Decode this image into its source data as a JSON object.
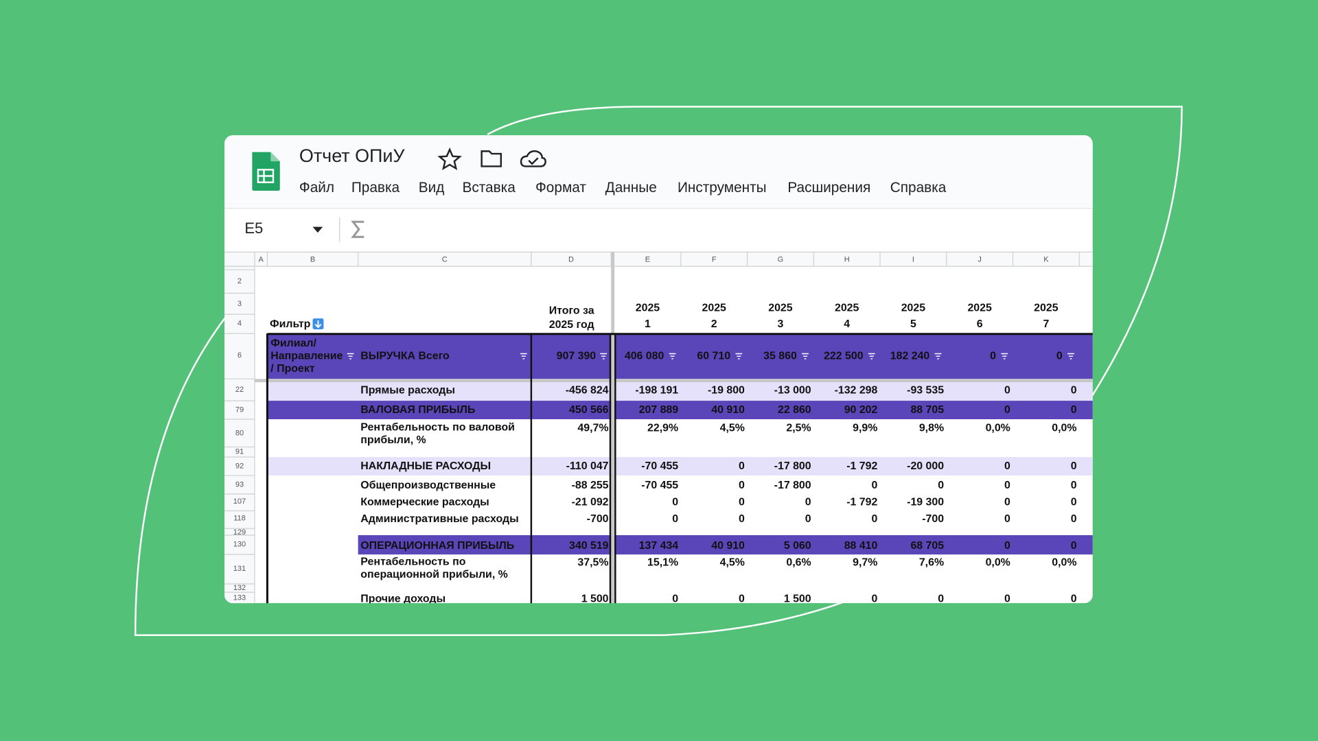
{
  "app": {
    "title": "Отчет ОПиУ",
    "menu": [
      "Файл",
      "Правка",
      "Вид",
      "Вставка",
      "Формат",
      "Данные",
      "Инструменты",
      "Расширения",
      "Справка"
    ]
  },
  "formula_bar": {
    "cell": "E5"
  },
  "sheet": {
    "columns": [
      "A",
      "B",
      "C",
      "D",
      "E",
      "F",
      "G",
      "H",
      "I",
      "J",
      "K"
    ],
    "row_numbers": [
      "2",
      "3",
      "4",
      "6",
      "22",
      "79",
      "80",
      "91",
      "92",
      "93",
      "107",
      "118",
      "129",
      "130",
      "131",
      "132",
      "133"
    ],
    "filter": "Фильтр",
    "total_header": [
      "Итого за",
      "2025 год"
    ],
    "periods": [
      [
        "2025",
        "1"
      ],
      [
        "2025",
        "2"
      ],
      [
        "2025",
        "3"
      ],
      [
        "2025",
        "4"
      ],
      [
        "2025",
        "5"
      ],
      [
        "2025",
        "6"
      ],
      [
        "2025",
        "7"
      ]
    ],
    "header_row": {
      "group": [
        "Филиал/",
        "Направление",
        "/ Проект"
      ],
      "label": "ВЫРУЧКА Всего",
      "total": "907 390",
      "values": [
        "406 080",
        "60 710",
        "35 860",
        "222 500",
        "182 240",
        "0",
        "0"
      ],
      "fill": "#5a46b8",
      "text_color": "#ffffff"
    },
    "rows": [
      {
        "label": [
          "Прямые расходы"
        ],
        "total": "-456 824",
        "values": [
          "-198 191",
          "-19 800",
          "-13 000",
          "-132 298",
          "-93 535",
          "0",
          "0"
        ],
        "fill": "#e5e1fb",
        "text_color": "#111111"
      },
      {
        "label": [
          "ВАЛОВАЯ ПРИБЫЛЬ"
        ],
        "total": "450 566",
        "values": [
          "207 889",
          "40 910",
          "22 860",
          "90 202",
          "88 705",
          "0",
          "0"
        ],
        "fill": "#5a46b8",
        "text_color": "#ffffff"
      },
      {
        "label": [
          "Рентабельность по валовой",
          "прибыли, %"
        ],
        "total": "49,7%",
        "values": [
          "22,9%",
          "4,5%",
          "2,5%",
          "9,9%",
          "9,8%",
          "0,0%",
          "0,0%"
        ],
        "text_color": "#111111"
      },
      {
        "label": [
          "НАКЛАДНЫЕ РАСХОДЫ"
        ],
        "total": "-110 047",
        "values": [
          "-70 455",
          "0",
          "-17 800",
          "-1 792",
          "-20 000",
          "0",
          "0"
        ],
        "fill": "#e5e1fb",
        "text_color": "#111111"
      },
      {
        "label": [
          "Общепроизводственные"
        ],
        "total": "-88 255",
        "values": [
          "-70 455",
          "0",
          "-17 800",
          "0",
          "0",
          "0",
          "0"
        ],
        "text_color": "#111111"
      },
      {
        "label": [
          "Коммерческие расходы"
        ],
        "total": "-21 092",
        "values": [
          "0",
          "0",
          "0",
          "-1 792",
          "-19 300",
          "0",
          "0"
        ],
        "text_color": "#111111"
      },
      {
        "label": [
          "Административные расходы"
        ],
        "total": "-700",
        "values": [
          "0",
          "0",
          "0",
          "0",
          "-700",
          "0",
          "0"
        ],
        "text_color": "#111111"
      },
      {
        "label": [
          "ОПЕРАЦИОННАЯ ПРИБЫЛЬ"
        ],
        "total": "340 519",
        "values": [
          "137 434",
          "40 910",
          "5 060",
          "88 410",
          "68 705",
          "0",
          "0"
        ],
        "fill": "#5a46b8",
        "text_color": "#ffffff"
      },
      {
        "label": [
          "Рентабельность по",
          "операционной прибыли, %"
        ],
        "total": "37,5%",
        "values": [
          "15,1%",
          "4,5%",
          "0,6%",
          "9,7%",
          "7,6%",
          "0,0%",
          "0,0%"
        ],
        "text_color": "#111111"
      },
      {
        "label": [
          "Прочие доходы"
        ],
        "total": "1 500",
        "values": [
          "0",
          "0",
          "1 500",
          "0",
          "0",
          "0",
          "0"
        ],
        "text_color": "#111111"
      }
    ]
  }
}
